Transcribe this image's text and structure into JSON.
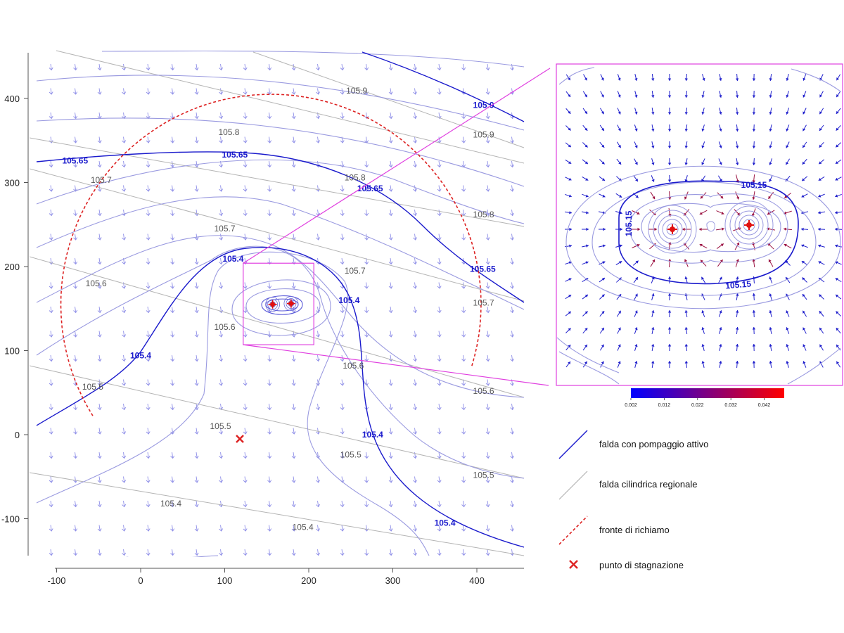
{
  "colors": {
    "pumping": "#1a1acc",
    "regional": "#b4b4b4",
    "light_contour": "#9a9ae0",
    "front": "#dd2222",
    "stagnation": "#dd2222",
    "inset_frame": "#e040e0",
    "arrow_main": "#9090e8",
    "arrow_inset": "#2020cc"
  },
  "chart_data": {
    "type": "contour",
    "xlim": [
      -120,
      455
    ],
    "ylim": [
      -145,
      455
    ],
    "x_ticks": [
      "-100",
      "0",
      "100",
      "200",
      "300",
      "400"
    ],
    "y_ticks": [
      "-100",
      "0",
      "100",
      "200",
      "300",
      "400"
    ],
    "wells": [
      {
        "x": 157,
        "y": 155
      },
      {
        "x": 179,
        "y": 156
      }
    ],
    "stagnation_point": {
      "x": 118,
      "y": -5
    },
    "capture_zone_center": [
      155,
      155
    ],
    "capture_zone_radius": 250,
    "regional_labels": [
      {
        "text": "105.9",
        "x": 257,
        "y": 409
      },
      {
        "text": "105.9",
        "x": 408,
        "y": 357
      },
      {
        "text": "105.8",
        "x": 105,
        "y": 360
      },
      {
        "text": "105.8",
        "x": 255,
        "y": 306
      },
      {
        "text": "105.8",
        "x": 408,
        "y": 262
      },
      {
        "text": "105.7",
        "x": -47,
        "y": 303
      },
      {
        "text": "105.7",
        "x": 100,
        "y": 245
      },
      {
        "text": "105.7",
        "x": 255,
        "y": 195
      },
      {
        "text": "105.7",
        "x": 408,
        "y": 157
      },
      {
        "text": "105.6",
        "x": -53,
        "y": 180
      },
      {
        "text": "105.6",
        "x": 100,
        "y": 128
      },
      {
        "text": "105.6",
        "x": 253,
        "y": 82
      },
      {
        "text": "105.6",
        "x": 408,
        "y": 52
      },
      {
        "text": "105.5",
        "x": -57,
        "y": 57
      },
      {
        "text": "105.5",
        "x": 95,
        "y": 10
      },
      {
        "text": "105.5",
        "x": 250,
        "y": -24
      },
      {
        "text": "105.5",
        "x": 408,
        "y": -48
      },
      {
        "text": "105.4",
        "x": 36,
        "y": -82
      },
      {
        "text": "105.4",
        "x": 193,
        "y": -110
      }
    ],
    "pumping_labels": [
      {
        "text": "105.9",
        "x": 408,
        "y": 392
      },
      {
        "text": "105.65",
        "x": -78,
        "y": 326
      },
      {
        "text": "105.65",
        "x": 112,
        "y": 333
      },
      {
        "text": "105.65",
        "x": 273,
        "y": 293
      },
      {
        "text": "105.65",
        "x": 407,
        "y": 197
      },
      {
        "text": "105.4",
        "x": 110,
        "y": 209
      },
      {
        "text": "105.4",
        "x": 0,
        "y": 94
      },
      {
        "text": "105.4",
        "x": 248,
        "y": 160
      },
      {
        "text": "105.4",
        "x": 276,
        "y": 0
      },
      {
        "text": "105.4",
        "x": 362,
        "y": -105
      }
    ],
    "inset": {
      "source_box": {
        "x0": 122,
        "x1": 206,
        "y0": 107,
        "y1": 204
      },
      "wells": [
        {
          "x": 956,
          "y": 326
        },
        {
          "x": 1065,
          "y": 320
        }
      ],
      "labels": [
        {
          "text": "105.15",
          "text_key": "inset_label_1"
        },
        {
          "text": "105.15",
          "text_key": "inset_label_2"
        },
        {
          "text": "105.15",
          "text_key": "inset_label_3"
        }
      ],
      "colorbar": {
        "ticks": [
          "0.002",
          "0.012",
          "0.022",
          "0.032",
          "0.042"
        ],
        "min": 0.002,
        "max": 0.048,
        "color_low": "#0000ff",
        "color_high": "#ff0000"
      }
    }
  },
  "legend": [
    {
      "label": "falda con pompaggio attivo",
      "style": "pumping"
    },
    {
      "label": "falda cilindrica regionale",
      "style": "regional"
    },
    {
      "label": "fronte di richiamo",
      "style": "front"
    },
    {
      "label": "punto di stagnazione",
      "style": "stagnation"
    }
  ]
}
